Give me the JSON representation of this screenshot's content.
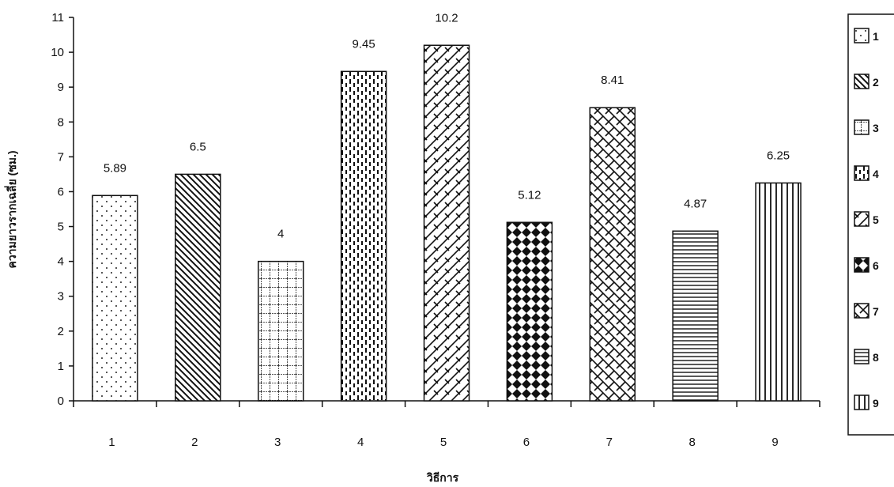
{
  "chart_data": {
    "type": "bar",
    "categories": [
      "1",
      "2",
      "3",
      "4",
      "5",
      "6",
      "7",
      "8",
      "9"
    ],
    "values": [
      5.89,
      6.5,
      4,
      9.45,
      10.2,
      5.12,
      8.41,
      4.87,
      6.25
    ],
    "data_labels": [
      "5.89",
      "6.5",
      "4",
      "9.45",
      "10.2",
      "5.12",
      "8.41",
      "4.87",
      ""
    ],
    "value_label_last": "6.25",
    "ylabel": "ความยาวรากเฉลี่ย (ซม.)",
    "xlabel": "วิธีการ",
    "ylim": [
      0,
      11
    ],
    "yticks": [
      "0",
      "1",
      "2",
      "3",
      "4",
      "5",
      "6",
      "7",
      "8",
      "9",
      "10",
      "11"
    ],
    "grid": false,
    "legend_position": "right",
    "legend": [
      "1",
      "2",
      "3",
      "4",
      "5",
      "6",
      "7",
      "8",
      "9"
    ],
    "patterns": [
      "dots",
      "diagonal-back",
      "grid",
      "dashed-vertical",
      "diagonal-brick",
      "diamond-checker",
      "weave",
      "horizontal",
      "vertical"
    ]
  }
}
